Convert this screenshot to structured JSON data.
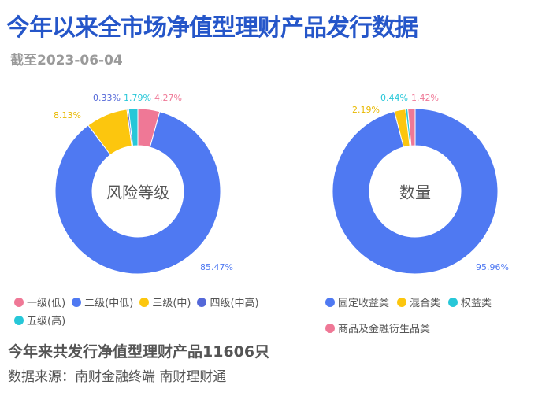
{
  "title": "今年以来全市场净值型理财产品发行数据",
  "subtitle": "截至2023-06-04",
  "chart_data": [
    {
      "type": "pie",
      "title": "风险等级",
      "categories": [
        "一级(低)",
        "二级(中低)",
        "三级(中)",
        "四级(中高)",
        "五级(高)"
      ],
      "values": [
        4.27,
        85.47,
        8.13,
        0.33,
        1.79
      ],
      "labels": [
        "4.27%",
        "85.47%",
        "8.13%",
        "0.33%",
        "1.79%"
      ],
      "colors": [
        "#ef7896",
        "#4f79f2",
        "#fcc60e",
        "#5468d8",
        "#27c7d8"
      ],
      "legend": "bottom"
    },
    {
      "type": "pie",
      "title": "数量",
      "categories": [
        "固定收益类",
        "混合类",
        "权益类",
        "商品及金融衍生品类"
      ],
      "values": [
        95.96,
        2.19,
        0.44,
        1.42
      ],
      "labels": [
        "95.96%",
        "2.19%",
        "0.44%",
        "1.42%"
      ],
      "colors": [
        "#4f79f2",
        "#fcc60e",
        "#27c7d8",
        "#ef7896"
      ],
      "legend": "bottom"
    }
  ],
  "summary": "今年来共发行净值型理财产品11606只",
  "source": "数据来源：南财金融终端 南财理财通"
}
